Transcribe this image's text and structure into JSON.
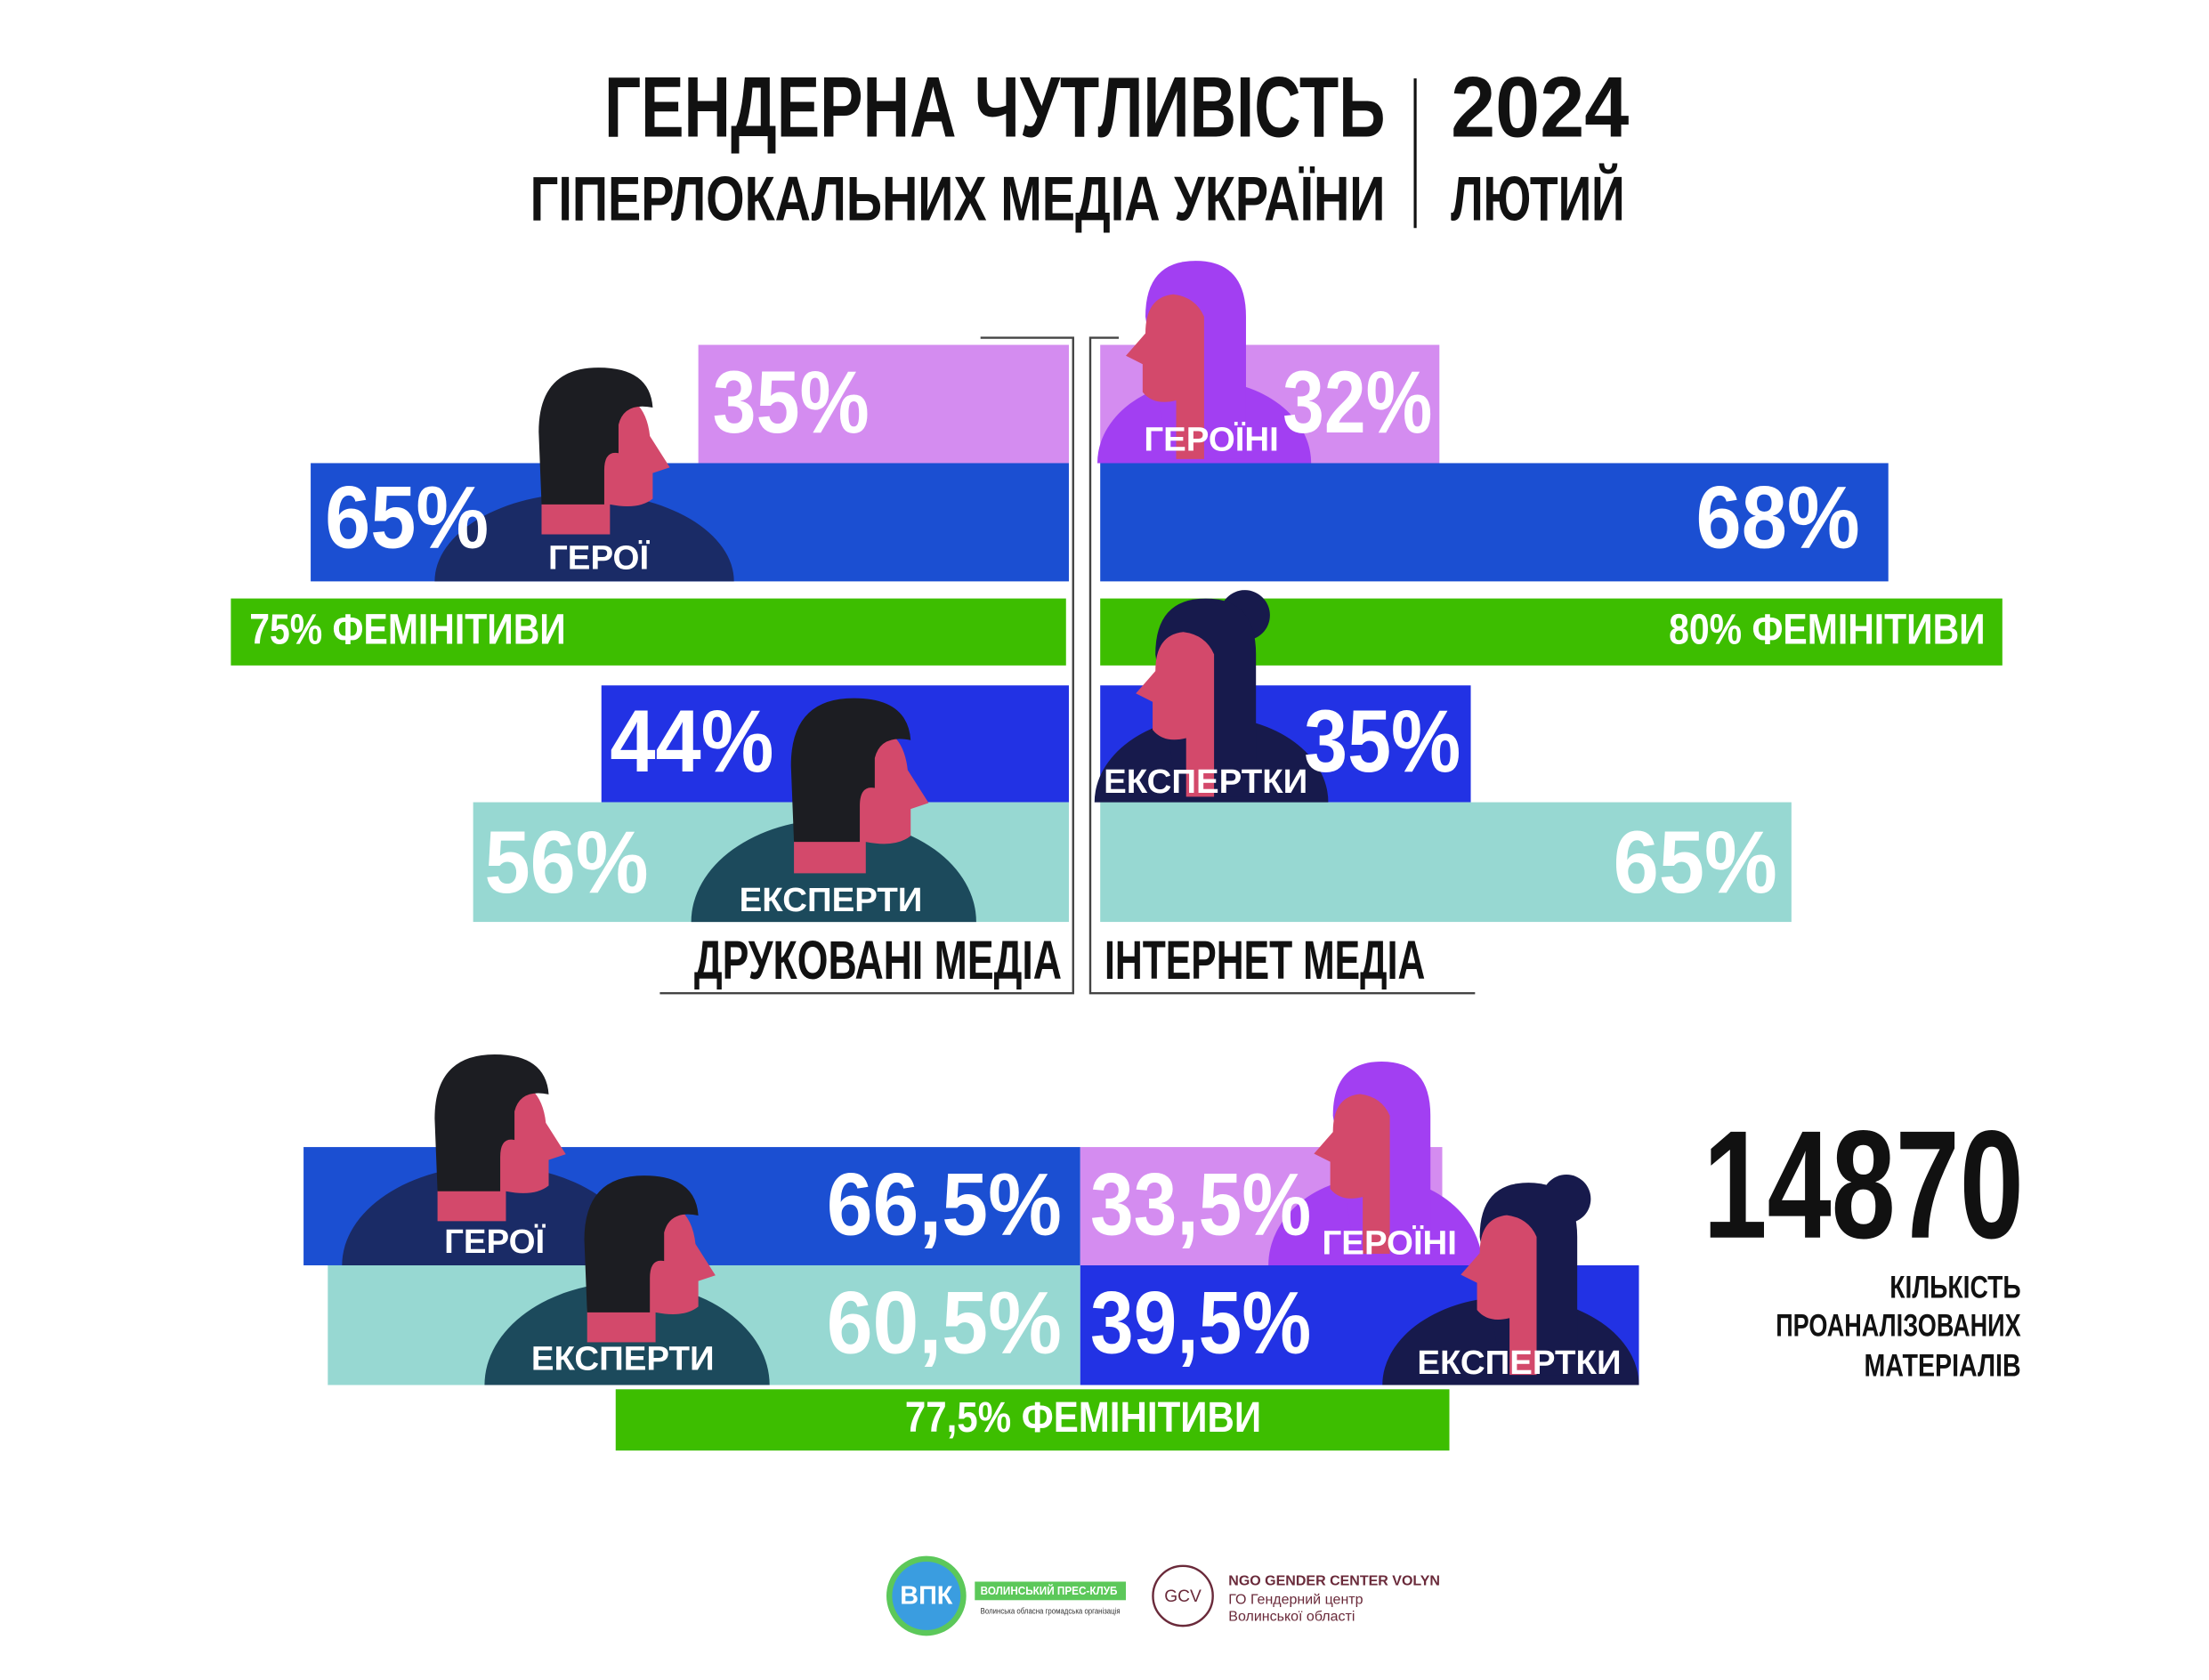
{
  "header": {
    "title_line1": "ГЕНДЕРНА ЧУТЛИВІСТЬ",
    "title_line2": "ГІПЕРЛОКАЛЬНИХ МЕДІА УКРАЇНИ",
    "year": "2024",
    "month": "ЛЮТИЙ"
  },
  "print_media": {
    "label": "ДРУКОВАНІ МЕДІА",
    "heroines": "35%",
    "heroes": "65%",
    "heroes_label": "ГЕРОЇ",
    "feminitives": "75% ФЕМІНІТИВИ",
    "female_experts": "44%",
    "male_experts": "56%",
    "experts_label": "ЕКСПЕРТИ"
  },
  "internet_media": {
    "label": "ІНТЕРНЕТ МЕДІА",
    "heroines": "32%",
    "heroines_label": "ГЕРОЇНІ",
    "heroes": "68%",
    "feminitives": "80% ФЕМІНІТИВИ",
    "female_experts": "35%",
    "female_experts_label": "ЕКСПЕРТКИ",
    "male_experts": "65%"
  },
  "total": {
    "heroes": "66,5%",
    "heroes_label": "ГЕРОЇ",
    "experts": "60,5%",
    "experts_label": "ЕКСПЕРТИ",
    "heroines": "33,5%",
    "heroines_label": "ГЕРОЇНІ",
    "female_experts": "39,5%",
    "female_experts_label": "ЕКСПЕРТКИ",
    "feminitives": "77,5% ФЕМІНІТИВИ"
  },
  "materials": {
    "count": "14870",
    "caption": [
      "КІЛЬКІСТЬ",
      "ПРОАНАЛІЗОВАНИХ",
      "МАТЕРІАЛІВ"
    ]
  },
  "logos": {
    "vpk": "ВПК",
    "vpk_name": "ВОЛИНСЬКИЙ ПРЕС-КЛУБ",
    "vpk_sub": "Волинська обласна громадська організація",
    "gcv": "GCV",
    "ngo_en": "NGO GENDER CENTER VOLYN",
    "ngo_ua_1": "ГО Гендерний центр",
    "ngo_ua_2": "Волинської області"
  }
}
